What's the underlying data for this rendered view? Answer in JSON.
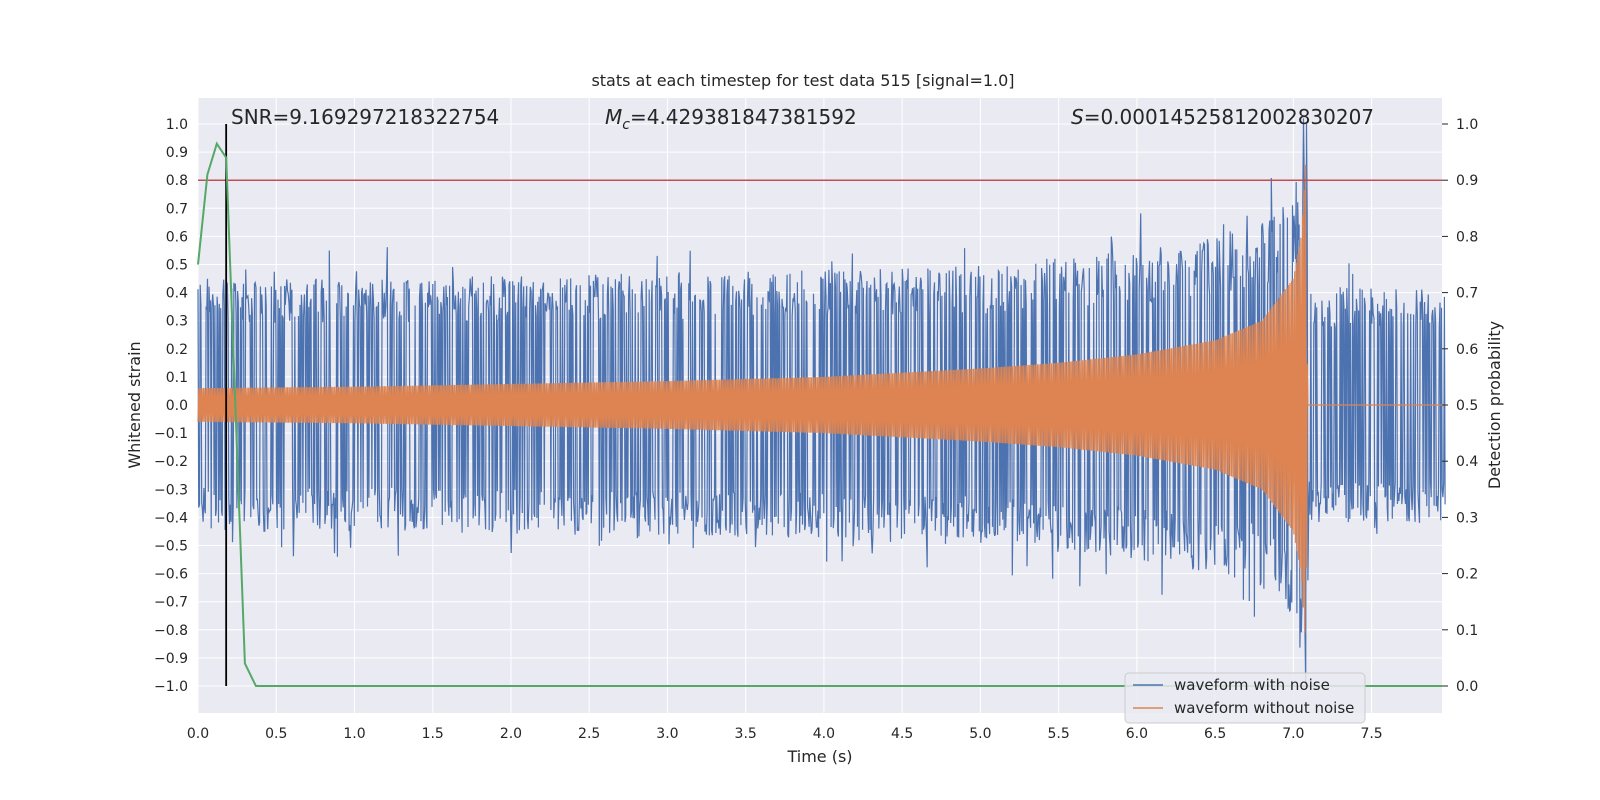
{
  "chart_data": {
    "type": "line",
    "title": "stats at each timestep for test data 515 [signal=1.0]",
    "xlabel": "Time (s)",
    "ylabel": "Whitened strain",
    "y2label": "Detection probability",
    "xlim": [
      0.0,
      8.0
    ],
    "ylim": [
      -1.1,
      1.1
    ],
    "y2lim": [
      -0.05,
      1.05
    ],
    "xticks": [
      "0.0",
      "0.5",
      "1.0",
      "1.5",
      "2.0",
      "2.5",
      "3.0",
      "3.5",
      "4.0",
      "4.5",
      "5.0",
      "5.5",
      "6.0",
      "6.5",
      "7.0",
      "7.5"
    ],
    "yticks": [
      "−1.0",
      "−0.9",
      "−0.8",
      "−0.7",
      "−0.6",
      "−0.5",
      "−0.4",
      "−0.3",
      "−0.2",
      "−0.1",
      "0.0",
      "0.1",
      "0.2",
      "0.3",
      "0.4",
      "0.5",
      "0.6",
      "0.7",
      "0.8",
      "0.9",
      "1.0"
    ],
    "y2ticks": [
      "0.0",
      "0.1",
      "0.2",
      "0.3",
      "0.4",
      "0.5",
      "0.6",
      "0.7",
      "0.8",
      "0.9",
      "1.0"
    ],
    "grid": true,
    "annotations": {
      "snr": "SNR=9.169297218322754",
      "mc_symbol": "M",
      "mc_sub": "c",
      "mc_value": "=4.429381847381592",
      "s_symbol": "S",
      "s_value": "=0.00014525812002830207"
    },
    "legend": {
      "position": "lower-right",
      "entries": [
        "waveform with noise",
        "waveform without noise"
      ]
    },
    "series": [
      {
        "name": "waveform with noise",
        "color": "#4c72b0",
        "description": "noisy whitened strain, roughly within ±0.45 with spikes to ±0.6, ending at merger near t=7.08 s",
        "envelope_t": [
          0.0,
          1.0,
          2.0,
          3.0,
          4.0,
          5.0,
          6.0,
          6.5,
          6.8,
          7.0,
          7.08,
          7.1,
          8.0
        ],
        "envelope_amp": [
          0.45,
          0.45,
          0.46,
          0.47,
          0.48,
          0.5,
          0.55,
          0.6,
          0.65,
          0.75,
          1.0,
          0.42,
          0.42
        ]
      },
      {
        "name": "waveform without noise",
        "color": "#dd8452",
        "description": "clean chirp waveform, amplitude growing toward merger at t≈7.08 s, zero afterwards",
        "envelope_t": [
          0.0,
          1.0,
          2.0,
          3.0,
          4.0,
          5.0,
          5.5,
          6.0,
          6.5,
          6.8,
          7.0,
          7.05,
          7.08,
          7.09,
          8.0
        ],
        "envelope_amp": [
          0.06,
          0.065,
          0.075,
          0.085,
          0.1,
          0.13,
          0.15,
          0.18,
          0.23,
          0.3,
          0.45,
          0.6,
          0.87,
          0.0,
          0.0
        ]
      },
      {
        "name": "detection probability",
        "color": "#55a868",
        "axis": "right",
        "t": [
          0.0,
          0.06,
          0.12,
          0.18,
          0.3,
          0.37,
          7.95
        ],
        "values": [
          0.75,
          0.91,
          0.965,
          0.94,
          0.04,
          0.0,
          0.0
        ]
      }
    ],
    "threshold": {
      "value": 0.9,
      "axis": "right",
      "color": "#c44e52"
    },
    "marker_line": {
      "t": 0.18,
      "color": "#000000"
    }
  }
}
